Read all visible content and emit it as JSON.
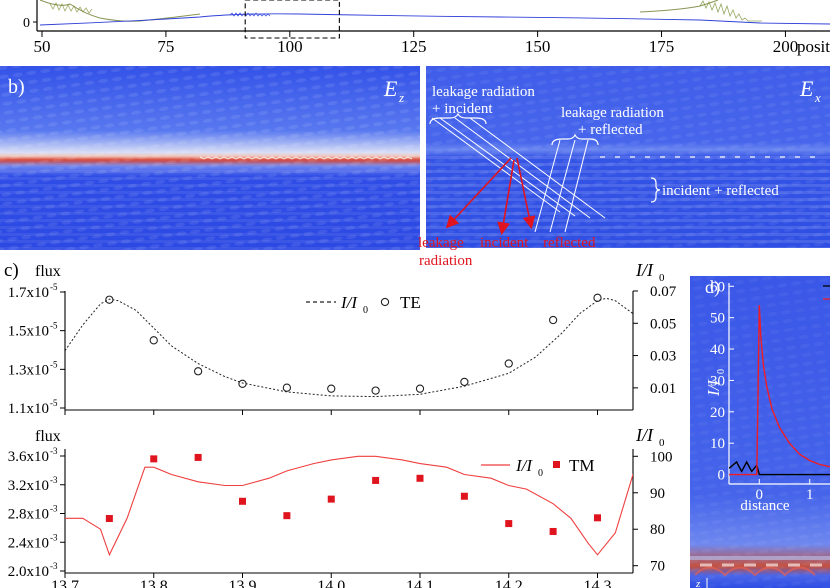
{
  "panel_top": {
    "x_ticks": [
      "50",
      "75",
      "100",
      "125",
      "150",
      "175",
      "200"
    ],
    "x_values": [
      50,
      75,
      100,
      125,
      150,
      175,
      200
    ],
    "x_range": [
      50,
      210
    ],
    "y_tick": "0",
    "x_axis_label": "posit",
    "zoom_box_range": [
      91,
      110
    ]
  },
  "panel_b": {
    "label": "b)",
    "left_field": "E",
    "left_field_sub": "z",
    "right_field": "E",
    "right_field_sub": "x",
    "annotations_white": {
      "leak_inc_1": "leakage radiation",
      "leak_inc_2": "+ incident",
      "leak_ref_1": "leakage radiation",
      "leak_ref_2": "+ reflected",
      "inc_ref": "incident + reflected"
    },
    "annotations_red": {
      "leak_1": "leakage",
      "leak_2": "radiation",
      "incident": "incident",
      "reflected": "reflected"
    }
  },
  "panel_c": {
    "label": "c)",
    "left_axis_title": "flux",
    "right_axis_title": "I/I",
    "right_axis_sub": "0",
    "te": {
      "y_ticks_left": [
        "1.1x10",
        "1.3x10",
        "1.5x10",
        "1.7x10"
      ],
      "y_ticks_left_exp": "-5",
      "y_ticks_right": [
        "0.01",
        "0.03",
        "0.05",
        "0.07"
      ],
      "legend_line": "I/I",
      "legend_line_sub": "0",
      "legend_marker": "TE"
    },
    "tm": {
      "y_ticks_left": [
        "2.0x10",
        "2.4x10",
        "2.8x10",
        "3.2x10",
        "3.6x10"
      ],
      "y_ticks_left_exp": "-3",
      "y_ticks_right": [
        "70",
        "80",
        "90",
        "100"
      ],
      "legend_line": "I/I",
      "legend_line_sub": "0",
      "legend_marker": "TM"
    },
    "x_ticks": [
      "13.7",
      "13.8",
      "13.9",
      "14.0",
      "14.1",
      "14.2",
      "14.3"
    ]
  },
  "panel_d": {
    "label": "d)",
    "y_ticks": [
      "0",
      "10",
      "20",
      "30",
      "40",
      "50",
      "60"
    ],
    "y_title": "I/I",
    "y_title_sub": "0",
    "x_ticks": [
      "0",
      "1"
    ],
    "x_title": "distance",
    "corner_label": "z"
  },
  "chart_data": [
    {
      "type": "scatter",
      "title": "TE",
      "xlabel": "",
      "ylabel": "flux",
      "y2label": "I/I0",
      "x": [
        13.75,
        13.8,
        13.85,
        13.9,
        13.95,
        14.0,
        14.05,
        14.1,
        14.15,
        14.2,
        14.25,
        14.3
      ],
      "ylim": [
        1.1e-05,
        1.7e-05
      ],
      "y2lim": [
        0.0,
        0.07
      ],
      "series": [
        {
          "name": "TE",
          "axis": "left",
          "values": [
            1.66e-05,
            1.45e-05,
            1.29e-05,
            1.225e-05,
            1.205e-05,
            1.2e-05,
            1.19e-05,
            1.2e-05,
            1.235e-05,
            1.33e-05,
            1.555e-05,
            1.67e-05
          ]
        },
        {
          "name": "I/I0",
          "axis": "right",
          "style": "dashed",
          "x": [
            13.7,
            13.72,
            13.74,
            13.75,
            13.76,
            13.78,
            13.8,
            13.82,
            13.85,
            13.88,
            13.9,
            13.95,
            14.0,
            14.05,
            14.1,
            14.15,
            14.2,
            14.23,
            14.26,
            14.28,
            14.3,
            14.31,
            14.32,
            14.34,
            14.36
          ],
          "values": [
            0.033,
            0.049,
            0.062,
            0.065,
            0.064,
            0.058,
            0.047,
            0.036,
            0.025,
            0.017,
            0.013,
            0.0075,
            0.005,
            0.0046,
            0.006,
            0.011,
            0.019,
            0.029,
            0.044,
            0.056,
            0.064,
            0.0655,
            0.064,
            0.056,
            0.047
          ]
        }
      ]
    },
    {
      "type": "scatter",
      "title": "TM",
      "xlabel": "",
      "ylabel": "flux",
      "y2label": "I/I0",
      "x": [
        13.75,
        13.8,
        13.85,
        13.9,
        13.95,
        14.0,
        14.05,
        14.1,
        14.15,
        14.2,
        14.25,
        14.3
      ],
      "ylim": [
        0.002,
        0.0036
      ],
      "y2lim": [
        68,
        102
      ],
      "series": [
        {
          "name": "TM",
          "axis": "left",
          "values": [
            0.00273,
            0.00356,
            0.00358,
            0.00297,
            0.00277,
            0.003,
            0.00326,
            0.00329,
            0.00304,
            0.00266,
            0.00255,
            0.00274
          ]
        },
        {
          "name": "I/I0",
          "axis": "right",
          "style": "solid",
          "x": [
            13.7,
            13.72,
            13.74,
            13.75,
            13.77,
            13.79,
            13.8,
            13.82,
            13.85,
            13.88,
            13.9,
            13.93,
            13.95,
            13.98,
            14.0,
            14.03,
            14.05,
            14.08,
            14.1,
            14.13,
            14.15,
            14.18,
            14.2,
            14.22,
            14.25,
            14.27,
            14.29,
            14.3,
            14.32,
            14.34,
            14.36
          ],
          "values": [
            83,
            83,
            80,
            73,
            83,
            97,
            97,
            95,
            93,
            92,
            92,
            94,
            96,
            98,
            99,
            100,
            100,
            99,
            98,
            97,
            95,
            94,
            92,
            91,
            87,
            83,
            76,
            73,
            79,
            95,
            96
          ]
        }
      ]
    },
    {
      "type": "line",
      "title": "d) inset",
      "xlabel": "distance",
      "ylabel": "I/I0",
      "xlim": [
        -0.6,
        1.6
      ],
      "ylim": [
        -3,
        62
      ],
      "series": [
        {
          "name": "black",
          "color": "#000000",
          "x": [
            -0.6,
            -0.45,
            -0.35,
            -0.25,
            -0.15,
            -0.05,
            0.0,
            0.3,
            1.0,
            1.6
          ],
          "values": [
            2,
            4,
            1,
            4,
            1,
            3,
            0,
            0,
            0,
            0
          ]
        },
        {
          "name": "red",
          "color": "#ee1c25",
          "x": [
            -0.6,
            -0.05,
            0.0,
            0.03,
            0.08,
            0.15,
            0.25,
            0.4,
            0.6,
            0.8,
            1.0,
            1.2,
            1.4,
            1.6
          ],
          "values": [
            0,
            0,
            54,
            44,
            35,
            28,
            21,
            15,
            10,
            6.5,
            4.5,
            3.2,
            2.5,
            2
          ]
        }
      ]
    }
  ]
}
